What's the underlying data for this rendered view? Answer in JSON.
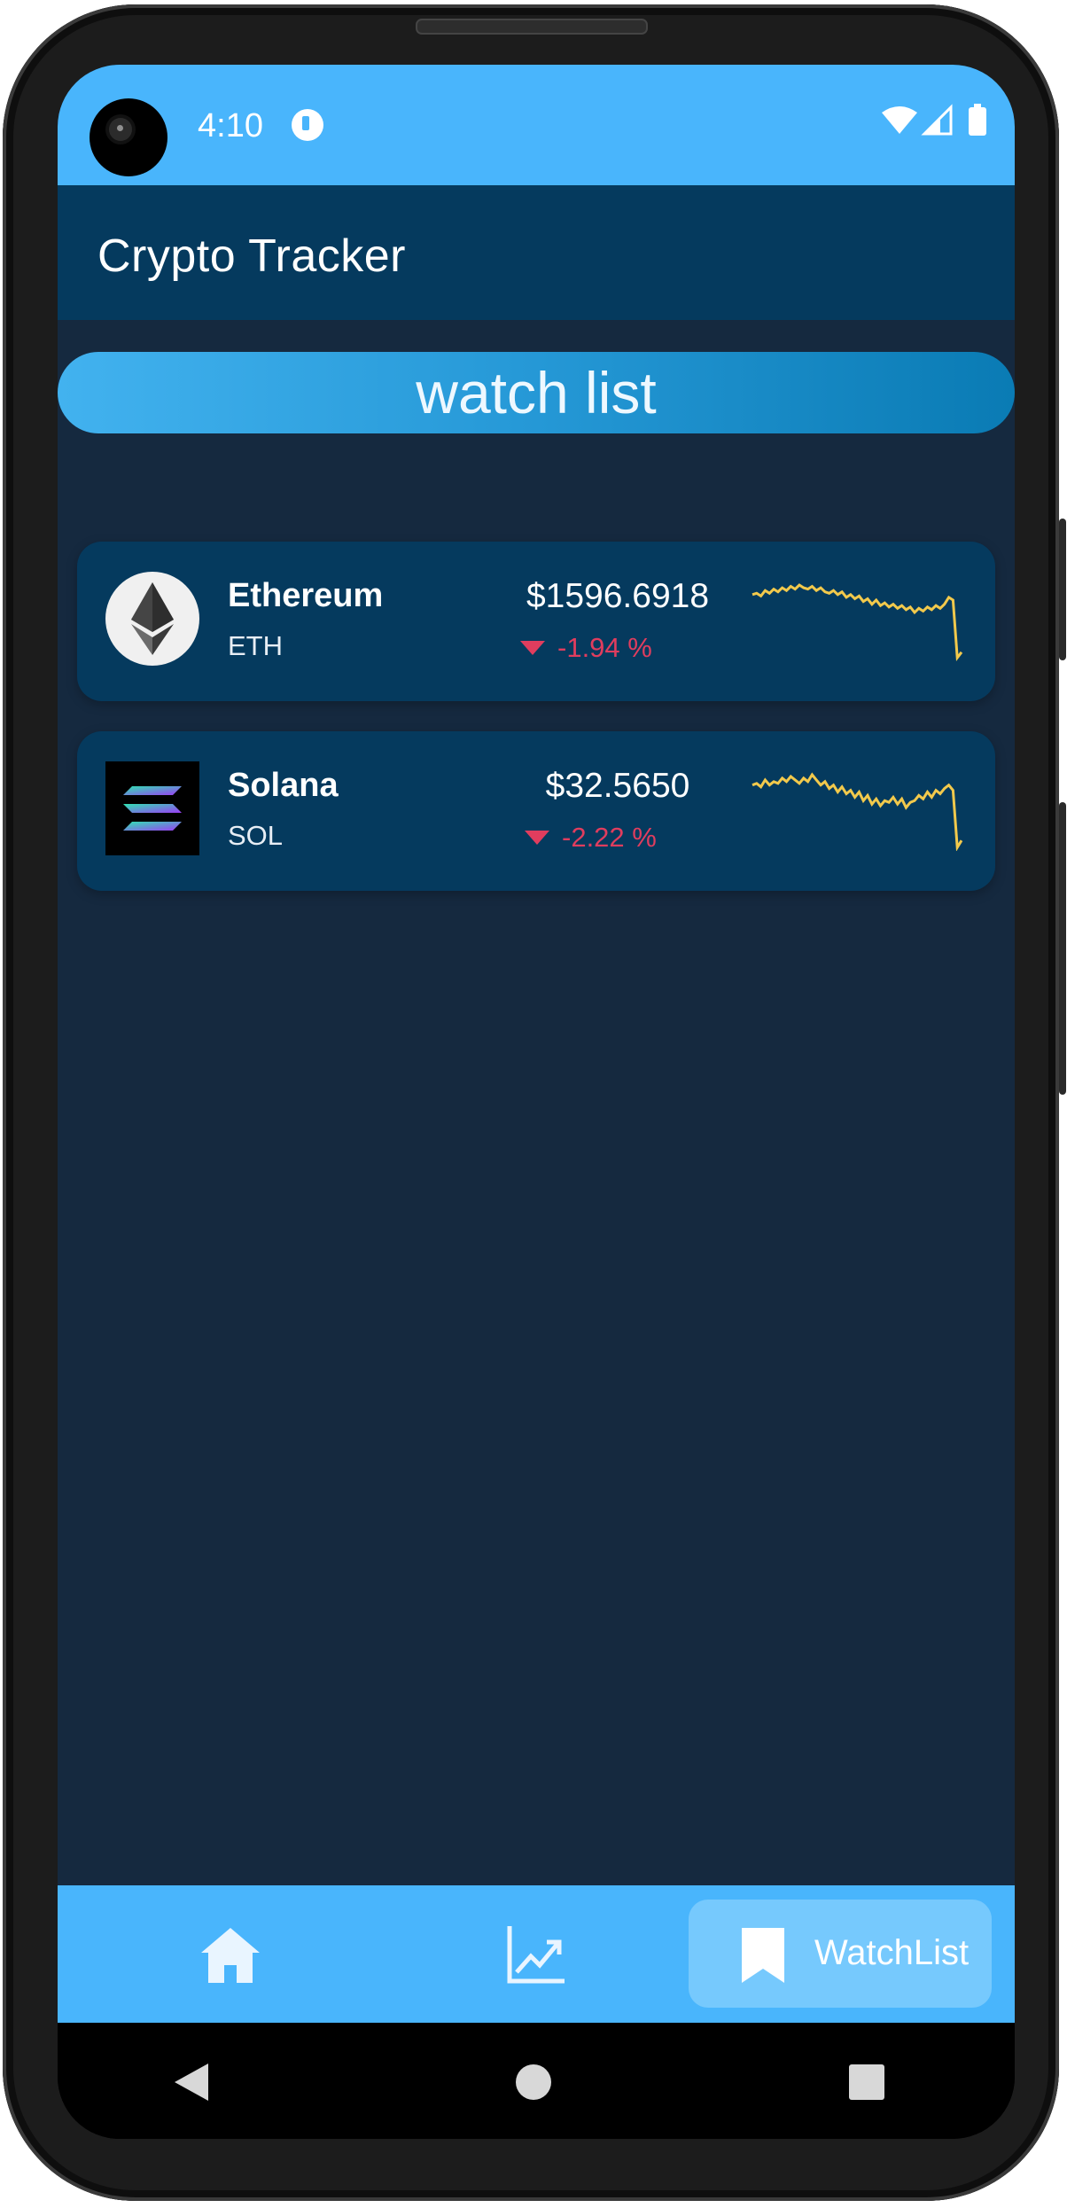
{
  "status_bar": {
    "time": "4:10"
  },
  "app_bar": {
    "title": "Crypto Tracker"
  },
  "watch_list": {
    "header": "watch list",
    "coins": [
      {
        "name": "Ethereum",
        "symbol": "ETH",
        "price": "$1596.6918",
        "change": "-1.94 %",
        "logo_icon": "ethereum-logo-icon",
        "sparkline": [
          48,
          47,
          49,
          45,
          47,
          44,
          46,
          43,
          45,
          42,
          44,
          41,
          43,
          44,
          42,
          45,
          43,
          46,
          47,
          45,
          48,
          46,
          50,
          48,
          51,
          49,
          53,
          51,
          55,
          52,
          56,
          54,
          57,
          55,
          58,
          56,
          59,
          57,
          61,
          58,
          60,
          57,
          59,
          56,
          58,
          55,
          50,
          52,
          94,
          90
        ],
        "trend_color": "#f2c94c"
      },
      {
        "name": "Solana",
        "symbol": "SOL",
        "price": "$32.5650",
        "change": "-2.22 %",
        "logo_icon": "solana-logo-icon",
        "sparkline": [
          44,
          43,
          45,
          41,
          44,
          42,
          43,
          40,
          42,
          39,
          41,
          43,
          40,
          42,
          38,
          41,
          44,
          42,
          46,
          44,
          48,
          45,
          49,
          47,
          51,
          48,
          53,
          50,
          55,
          52,
          56,
          53,
          54,
          51,
          55,
          52,
          57,
          54,
          53,
          50,
          52,
          48,
          51,
          47,
          49,
          46,
          44,
          47,
          80,
          76
        ],
        "trend_color": "#f2c94c"
      }
    ]
  },
  "bottom_nav": {
    "items": [
      {
        "icon": "home-icon",
        "label": ""
      },
      {
        "icon": "chart-trend-icon",
        "label": ""
      },
      {
        "icon": "bookmark-icon",
        "label": "WatchList"
      }
    ]
  }
}
